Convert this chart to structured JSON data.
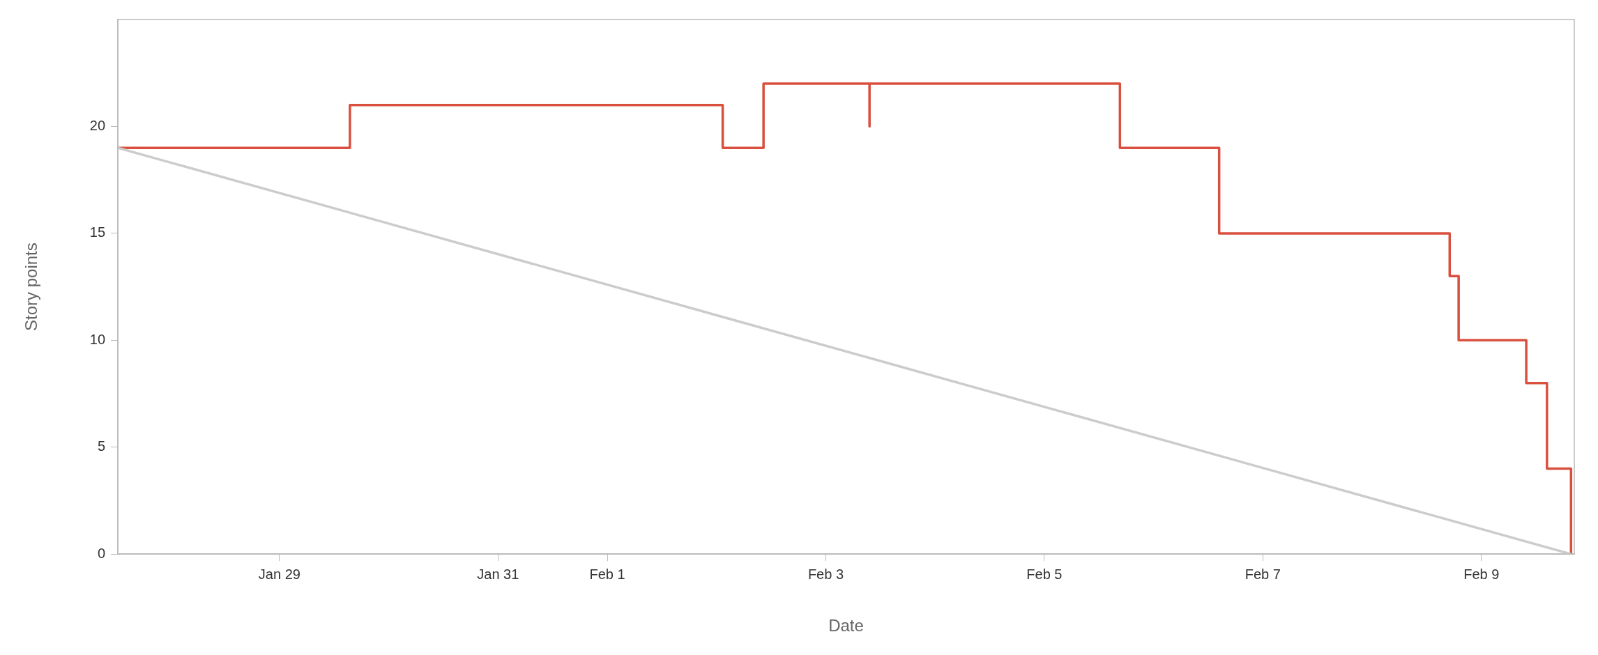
{
  "chart_data": {
    "type": "step",
    "xlabel": "Date",
    "ylabel": "Story points",
    "xlim": [
      "--01-27T12:30",
      "--02-09T20:24"
    ],
    "xticks": [
      {
        "value": "--01-29",
        "label": "Jan 29"
      },
      {
        "value": "--01-31",
        "label": "Jan 31"
      },
      {
        "value": "--02-01",
        "label": "Feb 1"
      },
      {
        "value": "--02-03",
        "label": "Feb 3"
      },
      {
        "value": "--02-05",
        "label": "Feb 5"
      },
      {
        "value": "--02-07",
        "label": "Feb 7"
      },
      {
        "value": "--02-09",
        "label": "Feb 9"
      }
    ],
    "ylim": [
      0,
      25
    ],
    "yticks": [
      0,
      5,
      10,
      15,
      20
    ],
    "series": [
      {
        "type": "line",
        "color": "#cccccc",
        "x": [
          "--01-27T12:30",
          "--02-09T19:41"
        ],
        "values": [
          19,
          0
        ]
      },
      {
        "color": "#d9503f",
        "x": [
          "--01-27T12:30",
          "--01-29T15:28",
          "--02-02T01:21",
          "--02-02T10:19",
          "--02-03T09:36",
          "--02-03T09:36",
          "--02-05T16:36",
          "--02-06T14:24",
          "--02-08T17:02",
          "--02-08T19:00",
          "--02-09T09:51",
          "--02-09T14:24",
          "--02-09T19:41"
        ],
        "values": [
          19,
          21,
          19,
          22,
          20,
          22,
          19,
          15,
          13,
          10,
          8,
          4,
          0
        ]
      }
    ],
    "legend": false
  }
}
